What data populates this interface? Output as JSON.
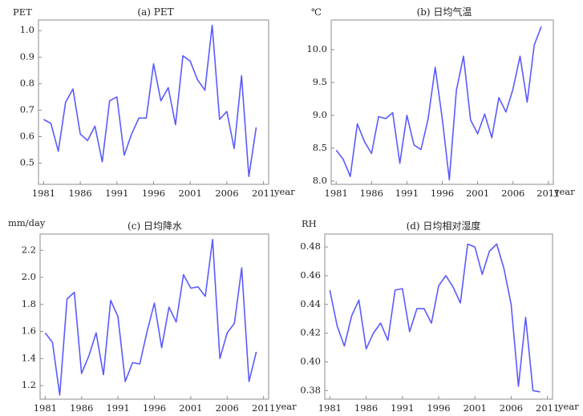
{
  "chart_data": [
    {
      "type": "line",
      "title": "(a) PET",
      "ylabel": "PET",
      "xlabel": "year",
      "x": [
        1981,
        1982,
        1983,
        1984,
        1985,
        1986,
        1987,
        1988,
        1989,
        1990,
        1991,
        1992,
        1993,
        1994,
        1995,
        1996,
        1997,
        1998,
        1999,
        2000,
        2001,
        2002,
        2003,
        2004,
        2005,
        2006,
        2007,
        2008,
        2009,
        2010
      ],
      "values": [
        0.665,
        0.65,
        0.545,
        0.73,
        0.78,
        0.61,
        0.585,
        0.64,
        0.505,
        0.735,
        0.75,
        0.53,
        0.61,
        0.67,
        0.67,
        0.875,
        0.735,
        0.785,
        0.645,
        0.905,
        0.885,
        0.815,
        0.775,
        1.02,
        0.665,
        0.695,
        0.555,
        0.83,
        0.45,
        0.635
      ],
      "xlim": [
        1980.3,
        2011.7
      ],
      "ylim": [
        0.42,
        1.04
      ],
      "yticks": [
        0.5,
        0.6,
        0.7,
        0.8,
        0.9,
        1.0
      ],
      "ytick_labels": [
        "0.5",
        "0.6",
        "0.7",
        "0.8",
        "0.9",
        "1.0"
      ],
      "xticks": [
        1981,
        1986,
        1991,
        1996,
        2001,
        2006,
        2011
      ],
      "xtick_labels": [
        "1981",
        "1986",
        "1991",
        "1996",
        "2001",
        "2006",
        "2011"
      ],
      "grid": false
    },
    {
      "type": "line",
      "title": "(b) 日均气温",
      "ylabel": "℃",
      "xlabel": "year",
      "x": [
        1981,
        1982,
        1983,
        1984,
        1985,
        1986,
        1987,
        1988,
        1989,
        1990,
        1991,
        1992,
        1993,
        1994,
        1995,
        1996,
        1997,
        1998,
        1999,
        2000,
        2001,
        2002,
        2003,
        2004,
        2005,
        2006,
        2007,
        2008,
        2009,
        2010
      ],
      "values": [
        8.47,
        8.33,
        8.07,
        8.87,
        8.6,
        8.42,
        8.98,
        8.95,
        9.04,
        8.27,
        9.0,
        8.55,
        8.48,
        8.95,
        9.73,
        8.95,
        8.02,
        9.38,
        9.9,
        8.93,
        8.72,
        9.02,
        8.66,
        9.27,
        9.05,
        9.4,
        9.9,
        9.2,
        10.07,
        10.35
      ],
      "xlim": [
        1980.3,
        2011.7
      ],
      "ylim": [
        7.95,
        10.45
      ],
      "yticks": [
        8.0,
        8.5,
        9.0,
        9.5,
        10.0
      ],
      "ytick_labels": [
        "8.0",
        "8.5",
        "9.0",
        "9.5",
        "10.0"
      ],
      "xticks": [
        1981,
        1986,
        1991,
        1996,
        2001,
        2006,
        2011
      ],
      "xtick_labels": [
        "1981",
        "1986",
        "1991",
        "1996",
        "2001",
        "2006",
        "2011"
      ],
      "grid": false
    },
    {
      "type": "line",
      "title": "(c) 日均降水",
      "ylabel": "mm/day",
      "xlabel": "year",
      "x": [
        1981,
        1982,
        1983,
        1984,
        1985,
        1986,
        1987,
        1988,
        1989,
        1990,
        1991,
        1992,
        1993,
        1994,
        1995,
        1996,
        1997,
        1998,
        1999,
        2000,
        2001,
        2002,
        2003,
        2004,
        2005,
        2006,
        2007,
        2008,
        2009,
        2010
      ],
      "values": [
        1.59,
        1.52,
        1.13,
        1.84,
        1.89,
        1.29,
        1.42,
        1.59,
        1.28,
        1.83,
        1.71,
        1.23,
        1.37,
        1.36,
        1.6,
        1.81,
        1.48,
        1.78,
        1.67,
        2.02,
        1.92,
        1.93,
        1.86,
        2.28,
        1.4,
        1.59,
        1.66,
        2.07,
        1.23,
        1.45
      ],
      "xlim": [
        1980.3,
        2011.7
      ],
      "ylim": [
        1.1,
        2.32
      ],
      "yticks": [
        1.2,
        1.4,
        1.6,
        1.8,
        2.0,
        2.2
      ],
      "ytick_labels": [
        "1.2",
        "1.4",
        "1.6",
        "1.8",
        "2.0",
        "2.2"
      ],
      "xticks": [
        1981,
        1986,
        1991,
        1996,
        2001,
        2006,
        2011
      ],
      "xtick_labels": [
        "1981",
        "1986",
        "1991",
        "1996",
        "2001",
        "2006",
        "2011"
      ],
      "grid": false
    },
    {
      "type": "line",
      "title": "(d) 日均相对湿度",
      "ylabel": "RH",
      "xlabel": "year",
      "x": [
        1981,
        1982,
        1983,
        1984,
        1985,
        1986,
        1987,
        1988,
        1989,
        1990,
        1991,
        1992,
        1993,
        1994,
        1995,
        1996,
        1997,
        1998,
        1999,
        2000,
        2001,
        2002,
        2003,
        2004,
        2005,
        2006,
        2007,
        2008,
        2009,
        2010
      ],
      "values": [
        0.45,
        0.425,
        0.411,
        0.432,
        0.443,
        0.409,
        0.42,
        0.427,
        0.415,
        0.45,
        0.451,
        0.421,
        0.437,
        0.437,
        0.427,
        0.453,
        0.46,
        0.452,
        0.441,
        0.482,
        0.48,
        0.461,
        0.477,
        0.482,
        0.465,
        0.44,
        0.383,
        0.431,
        0.38,
        0.379
      ],
      "xlim": [
        1980.3,
        2011.7
      ],
      "ylim": [
        0.374,
        0.489
      ],
      "yticks": [
        0.38,
        0.4,
        0.42,
        0.44,
        0.46,
        0.48
      ],
      "ytick_labels": [
        "0.38",
        "0.40",
        "0.42",
        "0.44",
        "0.46",
        "0.48"
      ],
      "xticks": [
        1981,
        1986,
        1991,
        1996,
        2001,
        2006,
        2011
      ],
      "xtick_labels": [
        "1981",
        "1986",
        "1991",
        "1996",
        "2001",
        "2006",
        "2011"
      ],
      "grid": false
    }
  ]
}
